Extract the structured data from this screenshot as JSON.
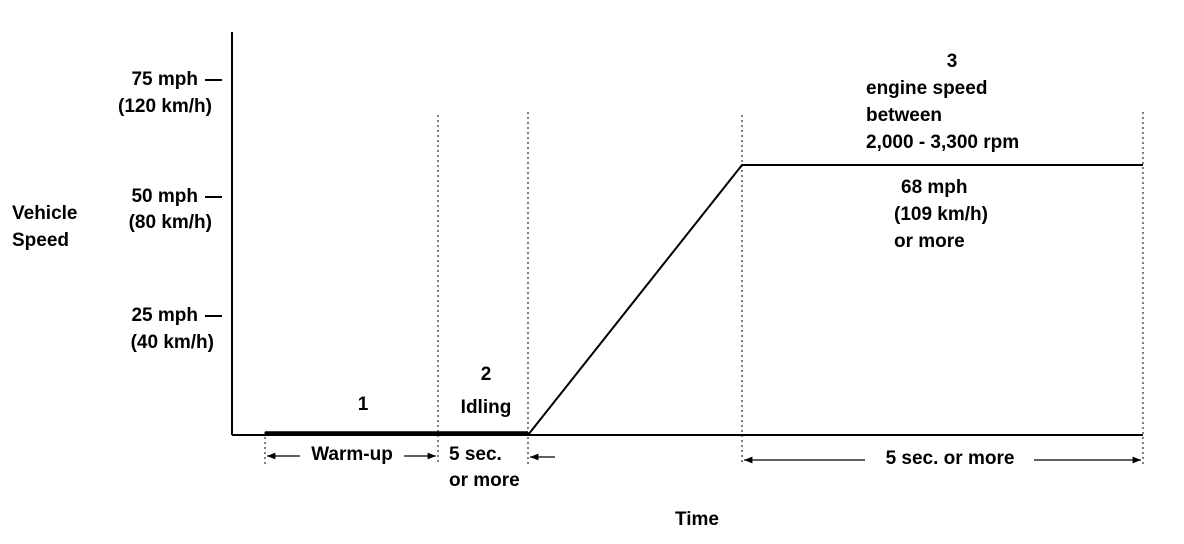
{
  "axes": {
    "y_label": [
      "Vehicle",
      "Speed"
    ],
    "x_label": "Time",
    "y_ticks": [
      {
        "speed": "75 mph",
        "metric": "(120 km/h)"
      },
      {
        "speed": "50 mph",
        "metric": "(80 km/h)"
      },
      {
        "speed": "25 mph",
        "metric": "(40 km/h)"
      }
    ]
  },
  "phases": [
    {
      "number": "1",
      "duration": "Warm-up"
    },
    {
      "number": "2",
      "label": "Idling",
      "duration": [
        "5 sec.",
        "or more"
      ]
    },
    {
      "number": "3",
      "label": [
        "engine speed",
        "between",
        "2,000 - 3,300 rpm"
      ],
      "target": [
        "68 mph",
        "(109 km/h)",
        "or more"
      ],
      "duration": "5 sec. or more"
    }
  ]
}
